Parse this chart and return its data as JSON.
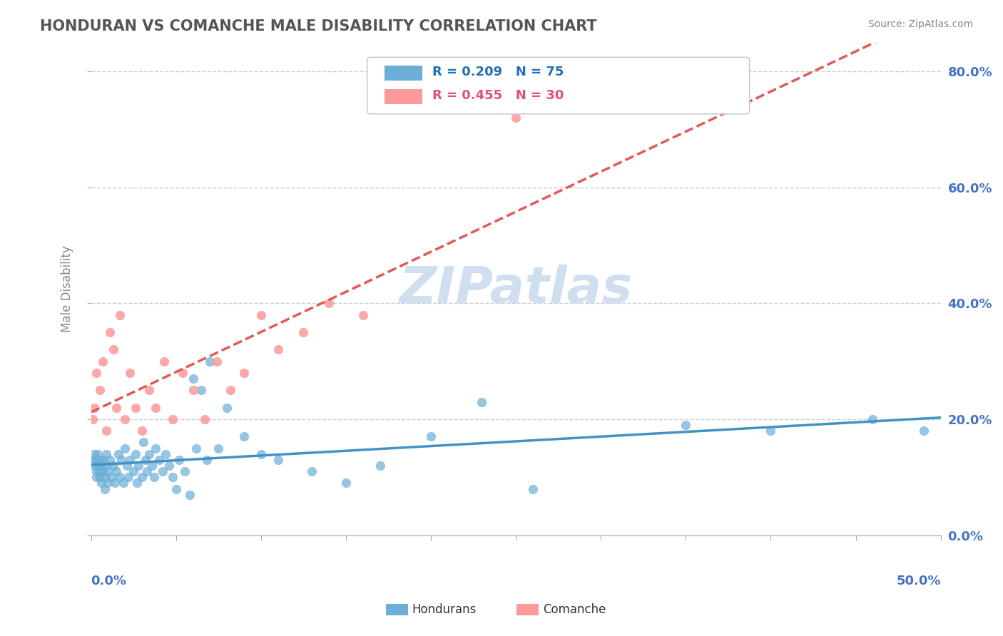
{
  "title": "HONDURAN VS COMANCHE MALE DISABILITY CORRELATION CHART",
  "source": "Source: ZipAtlas.com",
  "xmin": 0.0,
  "xmax": 0.5,
  "ymin": 0.0,
  "ymax": 0.85,
  "ylabel_ticks": [
    0.0,
    0.2,
    0.4,
    0.6,
    0.8
  ],
  "ylabel_labels": [
    "0.0%",
    "20.0%",
    "40.0%",
    "60.0%",
    "80.0%"
  ],
  "legend_r1": "R = 0.209",
  "legend_n1": "N = 75",
  "legend_r2": "R = 0.455",
  "legend_n2": "N = 30",
  "legend_label1": "Hondurans",
  "legend_label2": "Comanche",
  "blue_color": "#6baed6",
  "pink_color": "#fb9a99",
  "blue_dark": "#2171b5",
  "pink_legend_color": "#e05080",
  "blue_line_color": "#4292c6",
  "pink_line_color": "#e05a5a",
  "background_color": "#ffffff",
  "grid_color": "#cccccc",
  "title_color": "#555555",
  "axis_label_color": "#4472c4",
  "watermark_color": "#d0dff0",
  "hondurans_x": [
    0.001,
    0.002,
    0.002,
    0.003,
    0.003,
    0.003,
    0.004,
    0.004,
    0.005,
    0.005,
    0.005,
    0.006,
    0.006,
    0.007,
    0.007,
    0.008,
    0.008,
    0.009,
    0.009,
    0.01,
    0.01,
    0.011,
    0.012,
    0.013,
    0.014,
    0.015,
    0.016,
    0.017,
    0.018,
    0.019,
    0.02,
    0.021,
    0.022,
    0.023,
    0.025,
    0.026,
    0.027,
    0.028,
    0.03,
    0.031,
    0.032,
    0.033,
    0.034,
    0.036,
    0.037,
    0.038,
    0.04,
    0.042,
    0.044,
    0.046,
    0.048,
    0.05,
    0.052,
    0.055,
    0.058,
    0.06,
    0.062,
    0.065,
    0.068,
    0.07,
    0.075,
    0.08,
    0.09,
    0.1,
    0.11,
    0.13,
    0.15,
    0.17,
    0.2,
    0.23,
    0.26,
    0.35,
    0.4,
    0.46,
    0.49
  ],
  "hondurans_y": [
    0.13,
    0.12,
    0.14,
    0.1,
    0.11,
    0.13,
    0.12,
    0.14,
    0.1,
    0.11,
    0.13,
    0.12,
    0.09,
    0.11,
    0.13,
    0.08,
    0.1,
    0.12,
    0.14,
    0.09,
    0.11,
    0.13,
    0.1,
    0.12,
    0.09,
    0.11,
    0.14,
    0.1,
    0.13,
    0.09,
    0.15,
    0.12,
    0.1,
    0.13,
    0.11,
    0.14,
    0.09,
    0.12,
    0.1,
    0.16,
    0.13,
    0.11,
    0.14,
    0.12,
    0.1,
    0.15,
    0.13,
    0.11,
    0.14,
    0.12,
    0.1,
    0.08,
    0.13,
    0.11,
    0.07,
    0.27,
    0.15,
    0.25,
    0.13,
    0.3,
    0.15,
    0.22,
    0.17,
    0.14,
    0.13,
    0.11,
    0.09,
    0.12,
    0.17,
    0.23,
    0.08,
    0.19,
    0.18,
    0.2,
    0.18
  ],
  "comanche_x": [
    0.001,
    0.002,
    0.003,
    0.005,
    0.007,
    0.009,
    0.011,
    0.013,
    0.015,
    0.017,
    0.02,
    0.023,
    0.026,
    0.03,
    0.034,
    0.038,
    0.043,
    0.048,
    0.054,
    0.06,
    0.067,
    0.074,
    0.082,
    0.09,
    0.1,
    0.11,
    0.125,
    0.14,
    0.16,
    0.25
  ],
  "comanche_y": [
    0.2,
    0.22,
    0.28,
    0.25,
    0.3,
    0.18,
    0.35,
    0.32,
    0.22,
    0.38,
    0.2,
    0.28,
    0.22,
    0.18,
    0.25,
    0.22,
    0.3,
    0.2,
    0.28,
    0.25,
    0.2,
    0.3,
    0.25,
    0.28,
    0.38,
    0.32,
    0.35,
    0.4,
    0.38,
    0.72
  ]
}
